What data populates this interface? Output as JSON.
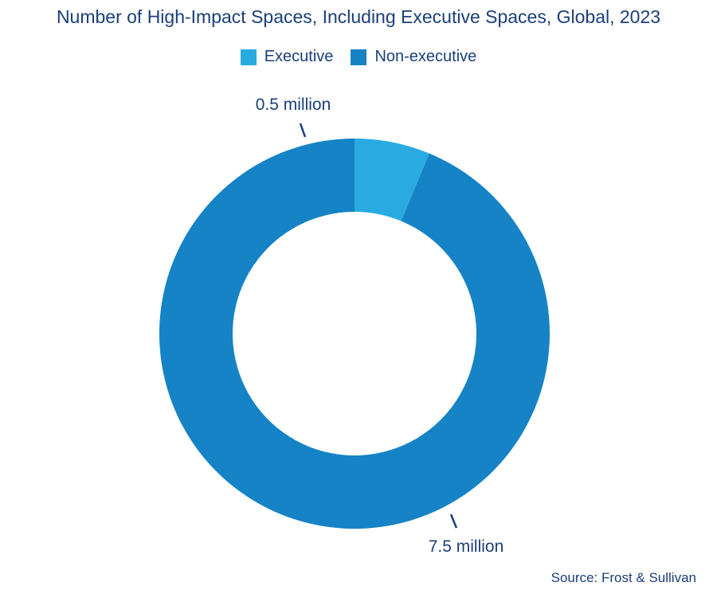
{
  "title": "Number of High-Impact Spaces, Including Executive Spaces, Global, 2023",
  "source": "Source: Frost & Sullivan",
  "colors": {
    "executive": "#29abe2",
    "non_executive": "#1583c6",
    "text": "#1b3f7a"
  },
  "chart_data": {
    "type": "pie",
    "variant": "donut",
    "title": "Number of High-Impact Spaces, Including Executive Spaces, Global, 2023",
    "legend_position": "top-center",
    "unit": "million",
    "series": [
      {
        "name": "Executive",
        "value": 0.5,
        "label": "0.5 million",
        "color": "#29abe2"
      },
      {
        "name": "Non-executive",
        "value": 7.5,
        "label": "7.5 million",
        "color": "#1583c6"
      }
    ]
  }
}
